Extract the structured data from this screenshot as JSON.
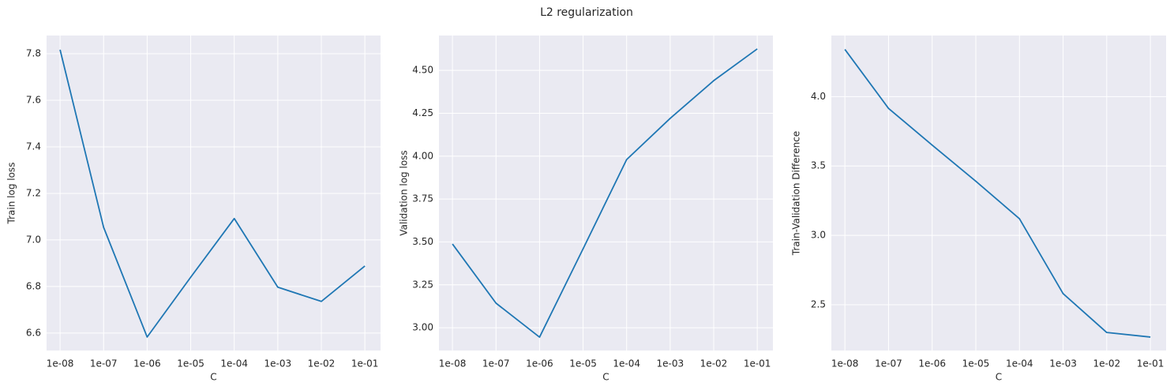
{
  "title": "L2 regularization",
  "chart_data": [
    {
      "type": "line",
      "xlabel": "C",
      "ylabel": "Train log loss",
      "categories": [
        "1e-08",
        "1e-07",
        "1e-06",
        "1e-05",
        "1e-04",
        "1e-03",
        "1e-02",
        "1e-01"
      ],
      "values": [
        7.817,
        7.054,
        6.583,
        6.84,
        7.092,
        6.797,
        6.736,
        6.888
      ],
      "color": "#1f77b4",
      "ylim": [
        6.525,
        7.878
      ],
      "yticks": [
        6.6,
        6.8,
        {
          "value": 7,
          "label": "7.0"
        },
        7.2,
        7.4,
        7.6,
        7.8
      ],
      "grid": true
    },
    {
      "type": "line",
      "xlabel": "C",
      "ylabel": "Validation log loss",
      "categories": [
        "1e-08",
        "1e-07",
        "1e-06",
        "1e-05",
        "1e-04",
        "1e-03",
        "1e-02",
        "1e-01"
      ],
      "values": [
        3.488,
        3.143,
        2.945,
        3.46,
        3.98,
        4.22,
        4.44,
        4.625
      ],
      "color": "#1f77b4",
      "ylim": [
        2.867,
        4.703
      ],
      "yticks": [
        {
          "value": 3,
          "label": "3.00"
        },
        3.25,
        {
          "value": 3.5,
          "label": "3.50"
        },
        3.75,
        {
          "value": 4,
          "label": "4.00"
        },
        4.25,
        {
          "value": 4.5,
          "label": "4.50"
        }
      ],
      "grid": true
    },
    {
      "type": "line",
      "xlabel": "C",
      "ylabel": "Train-Validation Difference",
      "categories": [
        "1e-08",
        "1e-07",
        "1e-06",
        "1e-05",
        "1e-04",
        "1e-03",
        "1e-02",
        "1e-01"
      ],
      "values": [
        4.34,
        3.915,
        3.65,
        3.39,
        3.12,
        2.58,
        2.3,
        2.267
      ],
      "color": "#1f77b4",
      "ylim": [
        2.17,
        4.44
      ],
      "yticks": [
        2.5,
        {
          "value": 3,
          "label": "3.0"
        },
        3.5,
        {
          "value": 4,
          "label": "4.0"
        }
      ],
      "grid": true
    }
  ]
}
